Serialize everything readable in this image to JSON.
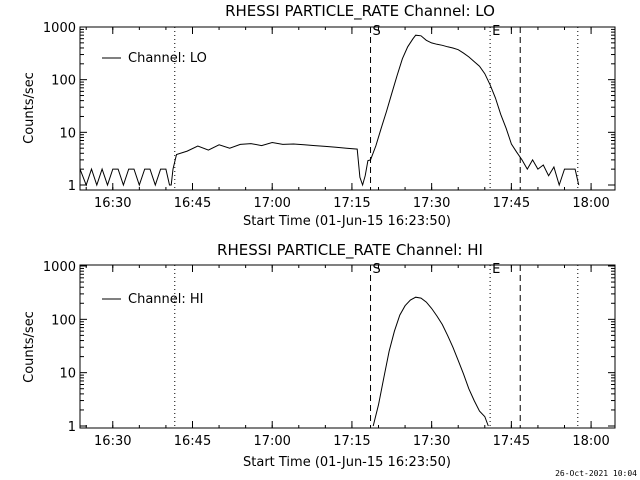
{
  "footer": {
    "timestamp": "26-Oct-2021 10:04"
  },
  "chart_data": [
    {
      "type": "line",
      "title": "RHESSI PARTICLE_RATE Channel: LO",
      "xlabel": "Start Time (01-Jun-15 16:23:50)",
      "ylabel": "Counts/sec",
      "y_scale": "log",
      "ylim": [
        1,
        1000
      ],
      "xlim": [
        "16:23:50",
        "18:04:30"
      ],
      "x_ticks": [
        "16:30",
        "16:45",
        "17:00",
        "17:15",
        "17:30",
        "17:45",
        "18:00"
      ],
      "y_ticks": [
        "1",
        "10",
        "100",
        "1000"
      ],
      "legend": {
        "entry": "Channel: LO",
        "position": "top-left"
      },
      "markers": [
        {
          "label": "",
          "time": "16:41:40",
          "style": "dotted"
        },
        {
          "label": "S",
          "time": "17:18:30",
          "style": "dashed"
        },
        {
          "label": "E",
          "time": "17:41:00",
          "style": "dotted"
        },
        {
          "label": "",
          "time": "17:46:40",
          "style": "dashed"
        },
        {
          "label": "",
          "time": "17:57:30",
          "style": "dotted"
        }
      ],
      "series": [
        {
          "name": "Channel: LO",
          "x": [
            "16:23:50",
            "16:25:00",
            "16:26:00",
            "16:27:00",
            "16:28:00",
            "16:29:00",
            "16:30:00",
            "16:31:00",
            "16:32:00",
            "16:33:00",
            "16:34:00",
            "16:35:00",
            "16:36:00",
            "16:37:00",
            "16:38:00",
            "16:39:00",
            "16:40:00",
            "16:40:40",
            "16:41:00",
            "16:41:20",
            "16:42:00",
            "16:44:00",
            "16:46:00",
            "16:48:00",
            "16:50:00",
            "16:52:00",
            "16:54:00",
            "16:56:00",
            "16:58:00",
            "17:00:00",
            "17:02:00",
            "17:04:00",
            "17:06:00",
            "17:08:00",
            "17:10:00",
            "17:12:00",
            "17:14:00",
            "17:16:00",
            "17:16:30",
            "17:17:00",
            "17:17:30",
            "17:18:00",
            "17:18:30",
            "17:19:30",
            "17:20:30",
            "17:21:30",
            "17:22:30",
            "17:23:30",
            "17:24:30",
            "17:25:30",
            "17:26:30",
            "17:27:00",
            "17:28:00",
            "17:29:00",
            "17:30:00",
            "17:31:00",
            "17:32:00",
            "17:33:00",
            "17:34:00",
            "17:35:00",
            "17:36:00",
            "17:37:00",
            "17:38:00",
            "17:39:00",
            "17:40:00",
            "17:41:00",
            "17:42:00",
            "17:43:00",
            "17:44:00",
            "17:45:00",
            "17:46:00",
            "17:47:00",
            "17:48:00",
            "17:49:00",
            "17:50:00",
            "17:51:00",
            "17:52:00",
            "17:53:00",
            "17:54:00",
            "17:55:00",
            "17:56:00",
            "17:57:00",
            "17:57:40"
          ],
          "y": [
            2,
            1,
            2,
            1,
            2,
            1,
            2,
            2,
            1,
            2,
            2,
            1,
            2,
            2,
            1,
            2,
            2,
            1,
            1,
            2,
            3.8,
            4.4,
            5.5,
            4.6,
            5.8,
            5.0,
            5.9,
            6.1,
            5.6,
            6.4,
            5.9,
            6.0,
            5.8,
            5.6,
            5.4,
            5.2,
            5.0,
            4.8,
            1.4,
            1.0,
            1.5,
            2.9,
            3.0,
            5.5,
            12,
            25,
            55,
            120,
            250,
            420,
            600,
            700,
            680,
            560,
            500,
            470,
            450,
            420,
            400,
            370,
            320,
            270,
            220,
            180,
            130,
            80,
            45,
            22,
            12,
            6,
            4.2,
            3.0,
            2.0,
            3.0,
            2.0,
            2.4,
            1.5,
            2.2,
            1.0,
            2.0,
            2.0,
            2.0,
            1.0
          ]
        }
      ]
    },
    {
      "type": "line",
      "title": "RHESSI PARTICLE_RATE Channel: HI",
      "xlabel": "Start Time (01-Jun-15 16:23:50)",
      "ylabel": "Counts/sec",
      "y_scale": "log",
      "ylim": [
        1,
        1000
      ],
      "xlim": [
        "16:23:50",
        "18:04:30"
      ],
      "x_ticks": [
        "16:30",
        "16:45",
        "17:00",
        "17:15",
        "17:30",
        "17:45",
        "18:00"
      ],
      "y_ticks": [
        "1",
        "10",
        "100",
        "1000"
      ],
      "legend": {
        "entry": "Channel: HI",
        "position": "top-left"
      },
      "markers": [
        {
          "label": "",
          "time": "16:41:40",
          "style": "dotted"
        },
        {
          "label": "S",
          "time": "17:18:30",
          "style": "dashed"
        },
        {
          "label": "E",
          "time": "17:41:00",
          "style": "dotted"
        },
        {
          "label": "",
          "time": "17:46:40",
          "style": "dashed"
        },
        {
          "label": "",
          "time": "17:57:30",
          "style": "dotted"
        }
      ],
      "series": [
        {
          "name": "Channel: HI",
          "x": [
            "17:19:00",
            "17:20:00",
            "17:21:00",
            "17:22:00",
            "17:23:00",
            "17:24:00",
            "17:25:00",
            "17:26:00",
            "17:27:00",
            "17:28:00",
            "17:29:00",
            "17:30:00",
            "17:31:00",
            "17:32:00",
            "17:33:00",
            "17:34:00",
            "17:35:00",
            "17:36:00",
            "17:37:00",
            "17:38:00",
            "17:39:00",
            "17:40:00",
            "17:40:40"
          ],
          "y": [
            1.0,
            2.5,
            8,
            25,
            60,
            120,
            180,
            230,
            260,
            250,
            210,
            160,
            115,
            80,
            50,
            30,
            17,
            9.5,
            5,
            3,
            1.9,
            1.5,
            1.0
          ]
        }
      ]
    }
  ]
}
